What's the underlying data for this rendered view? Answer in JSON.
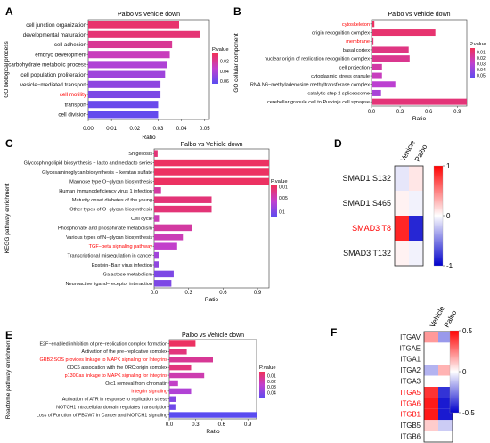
{
  "panels": {
    "A": {
      "letter": "A",
      "title": "Palbo vs Vehicle down",
      "ylabel": "GO biological process",
      "xlabel": "Ratio",
      "legend_title": "P.value"
    },
    "B": {
      "letter": "B",
      "title": "Palbo vs Vehicle down",
      "ylabel": "GO cellular component",
      "xlabel": "Ratio",
      "legend_title": "P.value"
    },
    "C": {
      "letter": "C",
      "title": "Palbo vs Vehicle down",
      "ylabel": "KEGG pathway enrichment",
      "xlabel": "Ratio",
      "legend_title": "P.value"
    },
    "D": {
      "letter": "D"
    },
    "E": {
      "letter": "E",
      "title": "Palbo vs Vehicle down",
      "ylabel": "Reactome pathway enrichment",
      "xlabel": "Ratio",
      "legend_title": "P.value"
    },
    "F": {
      "letter": "F"
    }
  },
  "colors": {
    "high": "#f03058",
    "mid": "#c040d0",
    "low": "#5a4cf0",
    "heat_red": "#ff0000",
    "heat_blue": "#0000cc",
    "highlight": "#ff0000"
  },
  "chart_data": [
    {
      "id": "A",
      "type": "bar",
      "orientation": "horizontal",
      "title": "Palbo vs Vehicle down",
      "xlabel": "Ratio",
      "ylabel": "GO biological process",
      "xlim": [
        0,
        0.052
      ],
      "xticks": [
        "0.00",
        "0.01",
        "0.02",
        "0.03",
        "0.04",
        "0.05"
      ],
      "categories": [
        "cell junction organization",
        "developmental maturation",
        "cell adhesion",
        "embryo development",
        "carbohydrate metabolic process",
        "cell population proliferation",
        "vesicle−mediated transport",
        "cell motility",
        "transport",
        "cell division"
      ],
      "values": [
        0.039,
        0.048,
        0.036,
        0.035,
        0.034,
        0.033,
        0.031,
        0.031,
        0.03,
        0.03
      ],
      "pvalues": [
        0.01,
        0.012,
        0.02,
        0.03,
        0.04,
        0.045,
        0.05,
        0.055,
        0.06,
        0.062
      ],
      "highlighted": [
        "cell motility"
      ],
      "legend": {
        "title": "P.value",
        "ticks": [
          "0.02",
          "0.04",
          "0.06"
        ],
        "range": [
          0.005,
          0.065
        ]
      }
    },
    {
      "id": "B",
      "type": "bar",
      "orientation": "horizontal",
      "title": "Palbo vs Vehicle down",
      "xlabel": "Ratio",
      "ylabel": "GO cellular component",
      "xlim": [
        0,
        1.0
      ],
      "xticks": [
        "0.0",
        "0.3",
        "0.6",
        "0.9"
      ],
      "categories": [
        "cytoskeleton",
        "origin recognition complex",
        "membrane",
        "basal cortex",
        "nuclear origin of replication recognition complex",
        "cell projection",
        "cytoplasmic stress granule",
        "RNA N6−methyladenosine methyltransferase complex",
        "catalytic step 2 spliceosome",
        "cerebellar granule cell to Purkinje cell synapse"
      ],
      "values": [
        0.03,
        0.67,
        0.02,
        0.39,
        0.4,
        0.11,
        0.11,
        0.25,
        0.1,
        1.0
      ],
      "pvalues": [
        0.005,
        0.008,
        0.01,
        0.012,
        0.015,
        0.02,
        0.025,
        0.03,
        0.035,
        0.01
      ],
      "highlighted": [
        "cytoskeleton",
        "membrane"
      ],
      "legend": {
        "title": "P.value",
        "ticks": [
          "0.01",
          "0.02",
          "0.03",
          "0.04",
          "0.05"
        ],
        "range": [
          0.003,
          0.055
        ]
      }
    },
    {
      "id": "C",
      "type": "bar",
      "orientation": "horizontal",
      "title": "Palbo vs Vehicle down",
      "xlabel": "Ratio",
      "ylabel": "KEGG pathway enrichment",
      "xlim": [
        0,
        1.0
      ],
      "xticks": [
        "0.0",
        "0.3",
        "0.6",
        "0.9"
      ],
      "categories": [
        "Shigellosis",
        "Glycosphingolipid biosynthesis − lacto and neolacto series",
        "Glycosaminoglycan biosynthesis − keratan sulfate",
        "Mannose type O−glycan biosynthesis",
        "Human immunodeficiency virus 1 infection",
        "Maturity onset diabetes of the young",
        "Other types of O−glycan biosynthesis",
        "Cell cycle",
        "Phosphonate and phosphinate metabolism",
        "Various types of N−glycan biosynthesis",
        "TGF−beta signaling pathway",
        "Transcriptional misregulation in cancer",
        "Epstein−Barr virus infection",
        "Galactose metabolism",
        "Neuroactive ligand−receptor interaction"
      ],
      "values": [
        0.03,
        1.0,
        1.0,
        1.0,
        0.06,
        0.5,
        0.5,
        0.05,
        0.33,
        0.25,
        0.2,
        0.04,
        0.04,
        0.17,
        0.15
      ],
      "pvalues": [
        0.02,
        0.01,
        0.01,
        0.01,
        0.04,
        0.02,
        0.02,
        0.05,
        0.04,
        0.05,
        0.06,
        0.08,
        0.09,
        0.1,
        0.1
      ],
      "highlighted": [
        "TGF−beta signaling pathway"
      ],
      "legend": {
        "title": "P.value",
        "ticks": [
          "0.01",
          "0.05",
          "0.1"
        ],
        "range": [
          0.005,
          0.12
        ]
      }
    },
    {
      "id": "D",
      "type": "heatmap",
      "columns": [
        "Vehicle",
        "Palbo"
      ],
      "rows": [
        "SMAD1 S132",
        "SMAD1 S465",
        "SMAD3 T8",
        "SMAD3 T132"
      ],
      "values": [
        [
          -0.1,
          0.1
        ],
        [
          0.05,
          -0.05
        ],
        [
          0.85,
          -0.85
        ],
        [
          0.05,
          -0.05
        ]
      ],
      "highlighted": [
        "SMAD3 T8"
      ],
      "legend": {
        "ticks": [
          "1",
          "0",
          "-1"
        ],
        "range": [
          -1,
          1
        ]
      }
    },
    {
      "id": "E",
      "type": "bar",
      "orientation": "horizontal",
      "title": "Palbo vs Vehicle down",
      "xlabel": "Ratio",
      "ylabel": "Reactome pathway enrichment",
      "xlim": [
        0,
        1.0
      ],
      "xticks": [
        "0.0",
        "0.3",
        "0.6",
        "0.9"
      ],
      "categories": [
        "E2F−enabled inhibition of pre−replication complex formation",
        "Activation of the pre−replicative complex",
        "GRB2:SOS provides linkage to MAPK signaling for Integrins",
        "CDC6 association with the ORC:origin complex",
        "p130Cas linkage to MAPK signaling for integrins",
        "Orc1 removal from chromatin",
        "Integrin signaling",
        "Activation of ATR in response to replication stress",
        "NOTCH1 intracellular domain regulates transcription",
        "Loss of Function of FBXW7 in Cancer and NOTCH1 signaling"
      ],
      "values": [
        0.3,
        0.2,
        0.5,
        0.25,
        0.4,
        0.1,
        0.25,
        0.08,
        0.07,
        1.0
      ],
      "pvalues": [
        0.005,
        0.01,
        0.015,
        0.01,
        0.02,
        0.025,
        0.03,
        0.04,
        0.045,
        0.05
      ],
      "highlighted": [
        "GRB2:SOS provides linkage to MAPK signaling for Integrins",
        "p130Cas linkage to MAPK signaling for integrins",
        "Integrin signaling"
      ],
      "legend": {
        "title": "P.value",
        "ticks": [
          "0.01",
          "0.02",
          "0.03",
          "0.04"
        ],
        "range": [
          0.003,
          0.05
        ]
      }
    },
    {
      "id": "F",
      "type": "heatmap",
      "columns": [
        "Vehicle",
        "Palbo"
      ],
      "rows": [
        "ITGAV",
        "ITGAE",
        "ITGA1",
        "ITGA2",
        "ITGA3",
        "ITGA5",
        "ITGA6",
        "ITGB1",
        "ITGB5",
        "ITGB6"
      ],
      "values": [
        [
          0.2,
          -0.2
        ],
        [
          0.0,
          0.0
        ],
        [
          0.0,
          0.0
        ],
        [
          -0.15,
          0.15
        ],
        [
          0.0,
          0.0
        ],
        [
          0.4,
          -0.4
        ],
        [
          0.45,
          -0.45
        ],
        [
          0.45,
          -0.45
        ],
        [
          0.1,
          -0.1
        ],
        [
          0.0,
          0.0
        ]
      ],
      "highlighted": [
        "ITGA5",
        "ITGA6",
        "ITGB1"
      ],
      "legend": {
        "ticks": [
          "0.5",
          "0",
          "-0.5"
        ],
        "range": [
          -0.5,
          0.5
        ]
      }
    }
  ]
}
